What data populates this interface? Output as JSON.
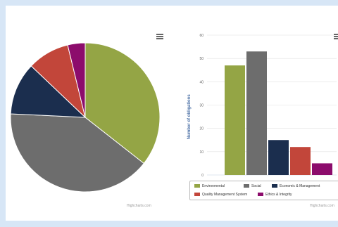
{
  "colors": {
    "environmental": "#94a545",
    "social": "#6d6d6d",
    "economic": "#1b2e4e",
    "quality": "#c2463a",
    "ethics": "#8c0c6c"
  },
  "icons": [
    "menu-icon",
    "menu-icon"
  ],
  "credits": "Highcharts.com",
  "chart_data": [
    {
      "type": "pie",
      "categories": [
        "Environmental",
        "Social",
        "Economic & Management",
        "Quality Management System",
        "Ethics & Integrity"
      ],
      "values": [
        47,
        53,
        15,
        12,
        5
      ]
    },
    {
      "type": "bar",
      "ylabel": "Number of obligations",
      "ylim": [
        0,
        60
      ],
      "yticks": [
        0,
        10,
        20,
        30,
        40,
        50,
        60
      ],
      "grid": true,
      "legend_position": "bottom",
      "series": [
        {
          "name": "Environmental",
          "values": [
            47
          ]
        },
        {
          "name": "Social",
          "values": [
            53
          ]
        },
        {
          "name": "Economic & Management",
          "values": [
            15
          ]
        },
        {
          "name": "Quality Management System",
          "values": [
            12
          ]
        },
        {
          "name": "Ethics & Integrity",
          "values": [
            5
          ]
        }
      ]
    }
  ]
}
